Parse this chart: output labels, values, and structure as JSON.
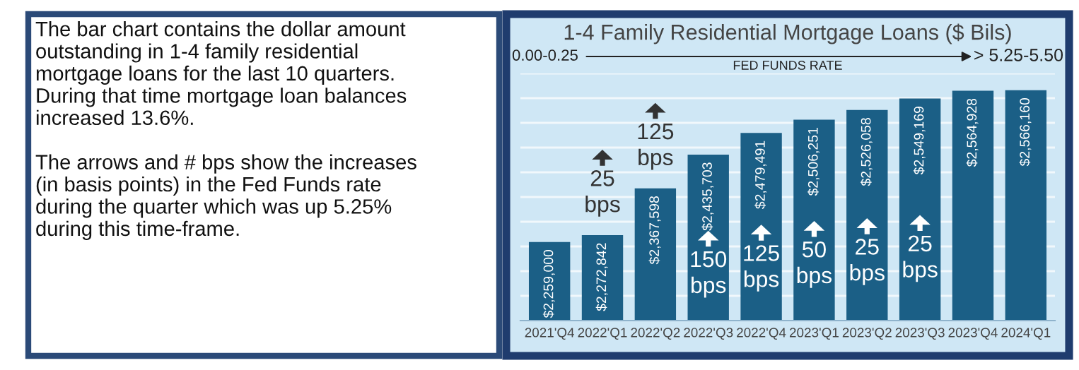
{
  "chart_data": {
    "type": "bar",
    "title": "1-4 Family Residential Mortgage Loans ($ Bils)",
    "categories": [
      "2021'Q4",
      "2022'Q1",
      "2022'Q2",
      "2022'Q3",
      "2022'Q4",
      "2023'Q1",
      "2023'Q2",
      "2023'Q3",
      "2023'Q4",
      "2024'Q1"
    ],
    "values": [
      2259000,
      2272842,
      2367598,
      2435703,
      2479491,
      2506251,
      2526058,
      2549169,
      2564928,
      2566160
    ],
    "value_labels": [
      "$2,259,000",
      "$2,272,842",
      "$2,367,598",
      "$2,435,703",
      "$2,479,491",
      "$2,506,251",
      "$2,526,058",
      "$2,549,169",
      "$2,564,928",
      "$2,566,160"
    ],
    "color": "#1b5f86",
    "ylim": [
      2100000,
      2600000
    ],
    "yticks": [
      {
        "value": 2150000,
        "label": null
      },
      {
        "value": 2200000,
        "label": null
      },
      {
        "value": 2250000,
        "label": null
      },
      {
        "value": 2300000,
        "label": null
      },
      {
        "value": 2350000,
        "label": null
      },
      {
        "value": 2400000,
        "label": null
      },
      {
        "value": 2450000,
        "label": null
      },
      {
        "value": 2500000,
        "label": null
      },
      {
        "value": 2550000,
        "label": null
      },
      {
        "value": 2600000,
        "label": null
      }
    ],
    "grid": "y",
    "tick_labels": "x",
    "annotations": [
      "The bar chart contains the dollar amount\noutstanding in 1-4 family residential\nmortgage loans for the last 10 quarters.\nDuring that time mortgage loan balances\nincreased 13.6%.\n\nThe arrows and # bps show the increases\n(in basis points) in the Fed Funds rate\nduring the quarter which was up 5.25%\nduring this time-frame.",
      "0.00-0.25",
      "> 5.25-5.50",
      "FED FUNDS RATE",
      "25\nbps",
      "125\nbps",
      "150\nbps",
      "125\nbps",
      "50\nbps",
      "25\nbps",
      "25\nbps"
    ]
  }
}
